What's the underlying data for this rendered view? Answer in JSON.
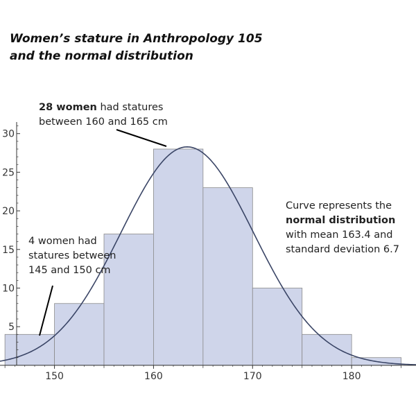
{
  "title": {
    "line1": "Women’s stature in Anthropology 105",
    "line2": "and the normal distribution"
  },
  "annotations": {
    "top": {
      "line1_bold": "28 women",
      "line1_rest": " had statures",
      "line2": "between 160 and 165 cm"
    },
    "left": {
      "line1": "4 women had",
      "line2": "statures between",
      "line3": "145 and 150 cm"
    },
    "right": {
      "line1": "Curve represents the",
      "line2_bold": "normal distribution",
      "line3": "with mean 163.4 and",
      "line4": "standard deviation 6.7"
    }
  },
  "colors": {
    "bar_fill": "#cfd5ea",
    "bar_stroke": "#8a8a8a",
    "curve": "#3a4566",
    "axis": "#333333",
    "pointer": "#000000"
  },
  "chart_data": {
    "type": "bar",
    "bins": [
      {
        "from": 145,
        "to": 150,
        "count": 4
      },
      {
        "from": 150,
        "to": 155,
        "count": 8
      },
      {
        "from": 155,
        "to": 160,
        "count": 17
      },
      {
        "from": 160,
        "to": 165,
        "count": 28
      },
      {
        "from": 165,
        "to": 170,
        "count": 23
      },
      {
        "from": 170,
        "to": 175,
        "count": 10
      },
      {
        "from": 175,
        "to": 180,
        "count": 4
      },
      {
        "from": 180,
        "to": 185,
        "count": 1
      }
    ],
    "normal_curve": {
      "mean": 163.4,
      "sd": 6.7,
      "n": 95,
      "bin_width": 5
    },
    "xlim": [
      144.5,
      186.5
    ],
    "ylim": [
      -1,
      31.5
    ],
    "x_ticks": [
      150,
      160,
      170,
      180
    ],
    "y_ticks": [
      5,
      10,
      15,
      20,
      25,
      30
    ],
    "x_tick_labels": [
      "150",
      "160",
      "170",
      "180"
    ],
    "y_tick_labels": [
      "5",
      "10",
      "15",
      "20",
      "25",
      "30"
    ],
    "title": "Women’s stature in Anthropology 105 and the normal distribution",
    "xlabel": "",
    "ylabel": "",
    "grid": false
  }
}
